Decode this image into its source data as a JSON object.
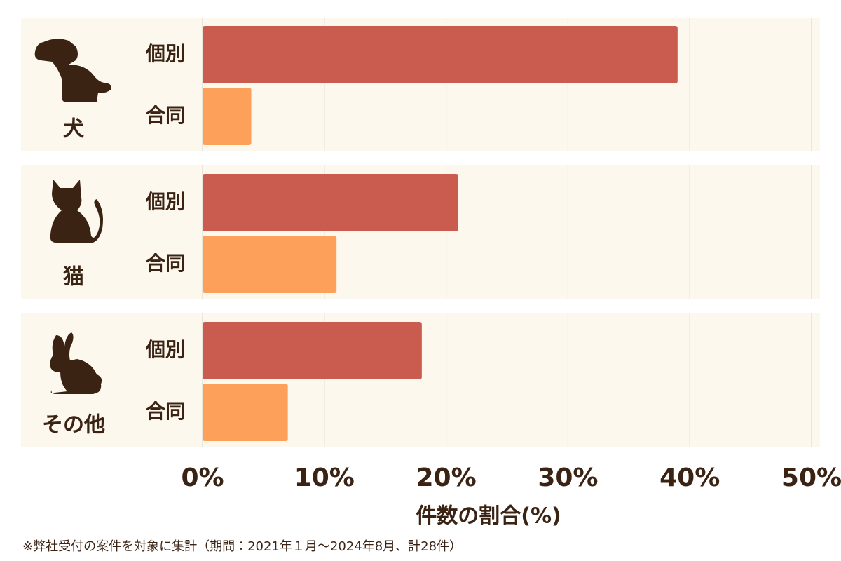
{
  "chart_data": {
    "type": "bar",
    "orientation": "horizontal",
    "categories": [
      "犬",
      "猫",
      "その他"
    ],
    "series": [
      {
        "name": "個別",
        "color": "#c95c4f",
        "values": [
          39,
          21,
          18
        ]
      },
      {
        "name": "合同",
        "color": "#fca05a",
        "values": [
          4,
          11,
          7
        ]
      }
    ],
    "xlim": [
      0,
      50
    ],
    "xticks": [
      {
        "value": 0,
        "label": "0%"
      },
      {
        "value": 10,
        "label": "10%"
      },
      {
        "value": 20,
        "label": "20%"
      },
      {
        "value": 30,
        "label": "30%"
      },
      {
        "value": 40,
        "label": "40%"
      },
      {
        "value": 50,
        "label": "50%"
      }
    ],
    "grid": true,
    "xlabel": "件数の割合(%)",
    "note": "※弊社受付の案件を対象に集計（期間：2021年１月～2024年8月、計28件）"
  }
}
